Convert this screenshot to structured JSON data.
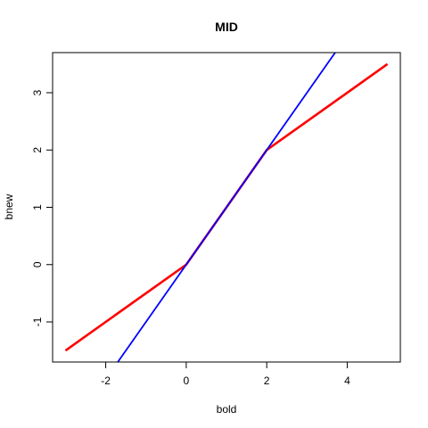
{
  "chart_data": {
    "type": "line",
    "title": "MID",
    "xlabel": "bold",
    "ylabel": "bnew",
    "xlim": [
      -3.32,
      5.32
    ],
    "ylim": [
      -1.7,
      3.7
    ],
    "x_ticks": [
      -2,
      0,
      2,
      4
    ],
    "y_ticks": [
      -1,
      0,
      1,
      2,
      3
    ],
    "grid": false,
    "series": [
      {
        "color": "#ff0000",
        "x": [
          -3,
          0,
          2,
          5
        ],
        "y": [
          -1.5,
          0,
          2,
          3.5
        ]
      },
      {
        "color": "#0000ff",
        "x": [
          -3,
          6
        ],
        "y": [
          -3,
          6
        ]
      }
    ]
  }
}
